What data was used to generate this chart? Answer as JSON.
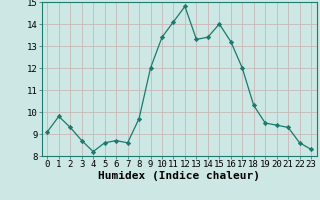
{
  "x": [
    0,
    1,
    2,
    3,
    4,
    5,
    6,
    7,
    8,
    9,
    10,
    11,
    12,
    13,
    14,
    15,
    16,
    17,
    18,
    19,
    20,
    21,
    22,
    23
  ],
  "y": [
    9.1,
    9.8,
    9.3,
    8.7,
    8.2,
    8.6,
    8.7,
    8.6,
    9.7,
    12.0,
    13.4,
    14.1,
    14.8,
    13.3,
    13.4,
    14.0,
    13.2,
    12.0,
    10.3,
    9.5,
    9.4,
    9.3,
    8.6,
    8.3
  ],
  "line_color": "#1a7a6e",
  "marker": "D",
  "marker_size": 2.2,
  "bg_color": "#cde8e4",
  "grid_color": "#b8d4d0",
  "xlabel": "Humidex (Indice chaleur)",
  "ylim": [
    8,
    15
  ],
  "xlim": [
    -0.5,
    23.5
  ],
  "yticks": [
    8,
    9,
    10,
    11,
    12,
    13,
    14,
    15
  ],
  "xticks": [
    0,
    1,
    2,
    3,
    4,
    5,
    6,
    7,
    8,
    9,
    10,
    11,
    12,
    13,
    14,
    15,
    16,
    17,
    18,
    19,
    20,
    21,
    22,
    23
  ],
  "tick_labelsize": 6.5,
  "xlabel_fontsize": 8.0
}
